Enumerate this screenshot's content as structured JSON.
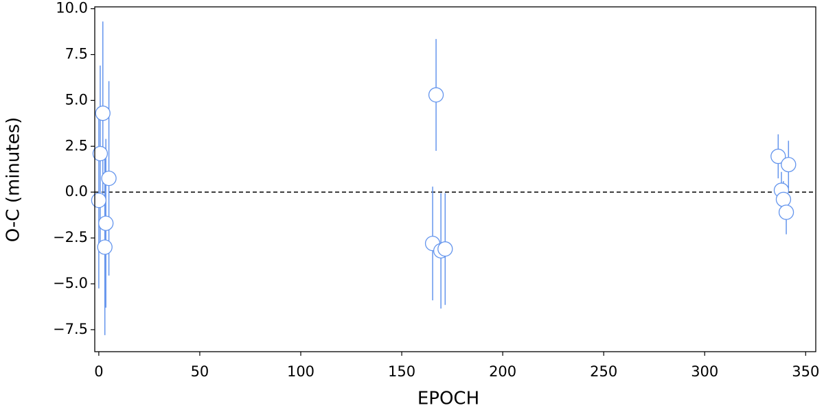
{
  "chart_data": {
    "type": "scatter",
    "xlabel": "EPOCH",
    "ylabel": "O-C (minutes)",
    "xlim": [
      -2,
      355
    ],
    "ylim": [
      -8.7,
      10.1
    ],
    "xticks": [
      0,
      50,
      100,
      150,
      200,
      250,
      300,
      350
    ],
    "yticks": [
      {
        "value": -7.5,
        "label": "−7.5"
      },
      {
        "value": -5,
        "label": "−5.0"
      },
      {
        "value": -2.5,
        "label": "−2.5"
      },
      {
        "value": 0,
        "label": "0.0"
      },
      2.5,
      {
        "value": 5,
        "label": "5.0"
      },
      7.5,
      {
        "value": 10,
        "label": "10.0"
      }
    ],
    "hline": 0,
    "series": [
      {
        "color": "#6495ed",
        "x": [
          0,
          0.7,
          2,
          3,
          3.5,
          5,
          165.3,
          167,
          169.4,
          171.5,
          336.4,
          338,
          339,
          340.4,
          341.5
        ],
        "values": [
          -0.45,
          2.1,
          4.3,
          -3.0,
          -1.7,
          0.75,
          -2.8,
          5.3,
          -3.2,
          -3.1,
          1.95,
          0.1,
          -0.4,
          -1.1,
          1.5
        ],
        "errors": [
          4.8,
          4.8,
          5.0,
          4.8,
          4.6,
          5.3,
          3.1,
          3.05,
          3.15,
          3.05,
          1.2,
          1.0,
          1.0,
          1.2,
          1.3
        ]
      }
    ]
  }
}
